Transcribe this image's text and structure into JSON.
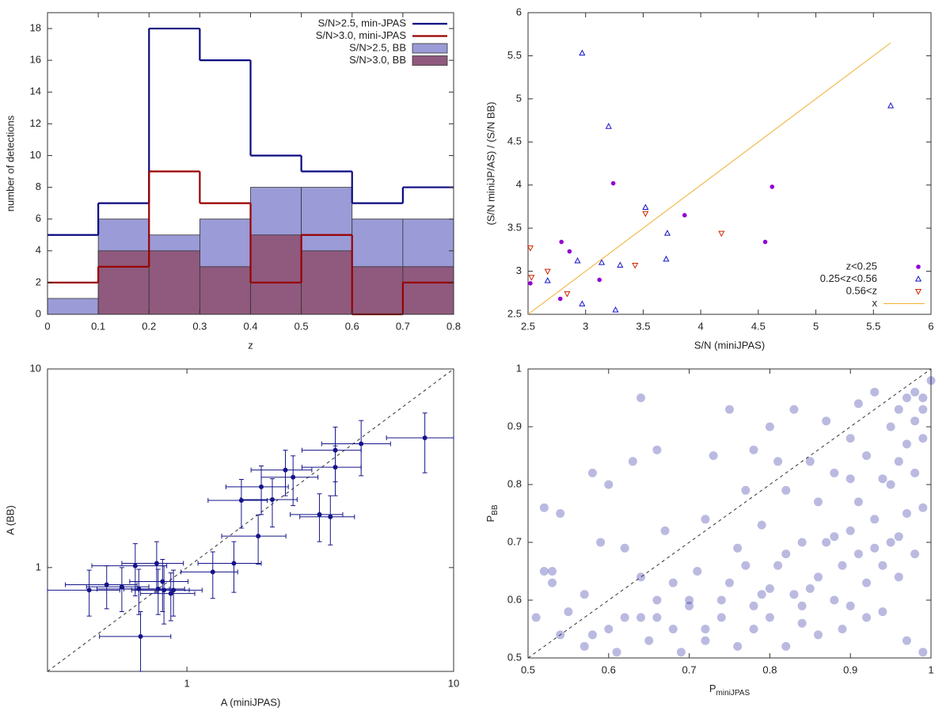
{
  "chart_data": [
    {
      "type": "histogram",
      "xlabel": "z",
      "ylabel": "number of detections",
      "bins": [
        0,
        0.1,
        0.2,
        0.3,
        0.4,
        0.5,
        0.6,
        0.7,
        0.8
      ],
      "series": [
        {
          "name": "S/N>2.5, min-JPAS",
          "color": "#0a0a80",
          "style": "step",
          "values": [
            5,
            7,
            18,
            16,
            10,
            9,
            7,
            8
          ]
        },
        {
          "name": "S/N>3.0, mini-JPAS",
          "color": "#990000",
          "style": "step",
          "values": [
            2,
            3,
            9,
            7,
            2,
            5,
            0,
            2
          ]
        },
        {
          "name": "S/N>2.5, BB",
          "color": "#9b9bd7",
          "style": "filled",
          "values": [
            1,
            6,
            5,
            6,
            8,
            8,
            6,
            6
          ]
        },
        {
          "name": "S/N>3.0, BB",
          "color": "#8f5a7d",
          "style": "filled",
          "values": [
            0,
            4,
            4,
            3,
            5,
            4,
            3,
            3
          ]
        }
      ],
      "xlim": [
        0,
        0.8
      ],
      "ylim": [
        0,
        19
      ],
      "xticks": [
        0,
        0.1,
        0.2,
        0.3,
        0.4,
        0.5,
        0.6,
        0.7,
        0.8
      ],
      "yticks": [
        0,
        2,
        4,
        6,
        8,
        10,
        12,
        14,
        16,
        18
      ],
      "legend": "top-right"
    },
    {
      "type": "scatter",
      "xlabel": "S/N (miniJPAS)",
      "ylabel": "(S/N miniJP/AS) / (S/N BB)",
      "series": [
        {
          "name": "z<0.25",
          "color": "#9400d3",
          "marker": "circle",
          "x": [
            2.52,
            2.79,
            2.86,
            2.78,
            3.12,
            3.24,
            3.86,
            4.56,
            4.62
          ],
          "values": [
            2.86,
            3.34,
            3.23,
            2.68,
            2.9,
            4.02,
            3.65,
            3.34,
            3.98
          ]
        },
        {
          "name": "0.25<z<0.56",
          "color": "#1010c8",
          "marker": "triangle-up",
          "x": [
            2.97,
            3.2,
            2.67,
            2.93,
            3.14,
            2.97,
            3.3,
            3.26,
            3.71,
            3.52,
            3.7,
            5.65
          ],
          "values": [
            5.53,
            4.68,
            2.89,
            3.12,
            3.1,
            2.62,
            3.07,
            2.55,
            3.44,
            3.74,
            3.14,
            4.92
          ]
        },
        {
          "name": "0.56<z",
          "color": "#cc2200",
          "marker": "triangle-down",
          "x": [
            2.52,
            2.53,
            2.67,
            2.84,
            3.43,
            3.52,
            4.18
          ],
          "values": [
            3.27,
            2.93,
            3.0,
            2.74,
            3.07,
            3.67,
            3.44
          ]
        },
        {
          "name": "x",
          "color": "#f0b030",
          "marker": "line",
          "x": [
            2.5,
            5.65
          ],
          "values": [
            2.5,
            5.65
          ]
        }
      ],
      "xlim": [
        2.5,
        6
      ],
      "ylim": [
        2.5,
        6
      ],
      "xticks": [
        2.5,
        3,
        3.5,
        4,
        4.5,
        5,
        5.5,
        6
      ],
      "yticks": [
        2.5,
        3,
        3.5,
        4,
        4.5,
        5,
        5.5,
        6
      ],
      "legend": "bottom-right"
    },
    {
      "type": "errorbar",
      "xlabel": "A (miniJPAS)",
      "ylabel": "A (BB)",
      "log_x": true,
      "log_y": true,
      "color": "#15158a",
      "diagonal": true,
      "x": [
        7.8,
        4.5,
        3.6,
        3.6,
        2.34,
        2.5,
        1.9,
        2.09,
        1.6,
        3.14,
        3.45,
        1.85,
        1.5,
        1.25,
        0.77,
        0.64,
        0.81,
        0.82,
        0.89,
        0.87,
        0.78,
        0.57,
        0.5,
        0.43,
        0.67,
        0.66
      ],
      "values": [
        4.5,
        4.2,
        3.9,
        3.2,
        3.1,
        2.85,
        2.55,
        2.2,
        2.18,
        1.85,
        1.8,
        1.44,
        1.05,
        0.95,
        1.05,
        1.02,
        0.85,
        0.77,
        0.77,
        0.74,
        0.78,
        0.8,
        0.82,
        0.77,
        0.45,
        0.78
      ],
      "xerr": [
        2.2,
        1.3,
        0.9,
        0.9,
        0.6,
        0.6,
        0.5,
        0.5,
        0.4,
        0.7,
        0.8,
        0.5,
        0.4,
        0.3,
        0.2,
        0.2,
        0.2,
        0.2,
        0.25,
        0.2,
        0.2,
        0.15,
        0.15,
        0.13,
        0.2,
        0.2
      ],
      "yerr": [
        1.5,
        1.3,
        1.2,
        0.9,
        0.8,
        0.8,
        0.7,
        0.6,
        0.6,
        0.5,
        0.5,
        0.4,
        0.3,
        0.25,
        0.3,
        0.3,
        0.25,
        0.25,
        0.2,
        0.2,
        0.2,
        0.2,
        0.2,
        0.2,
        0.15,
        0.2
      ],
      "xlim": [
        0.3,
        10
      ],
      "ylim": [
        0.3,
        10
      ],
      "xticks": [
        1,
        10
      ],
      "yticks": [
        1,
        10
      ]
    },
    {
      "type": "scatter",
      "xlabel": {
        "text": "P",
        "sub": "miniJPAS"
      },
      "ylabel": {
        "text": "P",
        "sub": "BB"
      },
      "diagonal": true,
      "alpha": 0.3,
      "series": [
        {
          "color": "#1a1a9c",
          "marker": "disc",
          "x": [
            0.51,
            0.52,
            0.52,
            0.53,
            0.53,
            0.54,
            0.54,
            0.55,
            0.57,
            0.57,
            0.58,
            0.58,
            0.59,
            0.6,
            0.61,
            0.62,
            0.63,
            0.64,
            0.64,
            0.65,
            0.66,
            0.66,
            0.67,
            0.68,
            0.69,
            0.7,
            0.71,
            0.72,
            0.72,
            0.73,
            0.74,
            0.75,
            0.75,
            0.76,
            0.77,
            0.77,
            0.78,
            0.78,
            0.79,
            0.79,
            0.8,
            0.8,
            0.81,
            0.81,
            0.82,
            0.82,
            0.83,
            0.83,
            0.84,
            0.84,
            0.85,
            0.85,
            0.86,
            0.86,
            0.87,
            0.87,
            0.88,
            0.88,
            0.89,
            0.89,
            0.9,
            0.9,
            0.9,
            0.91,
            0.91,
            0.92,
            0.92,
            0.93,
            0.93,
            0.94,
            0.94,
            0.95,
            0.95,
            0.96,
            0.96,
            0.96,
            0.97,
            0.97,
            0.97,
            0.98,
            0.98,
            0.98,
            0.99,
            0.99,
            0.99,
            0.99,
            1.0,
            0.99,
            0.98,
            0.97,
            0.96,
            0.95,
            0.94,
            0.93,
            0.92,
            0.91,
            0.9,
            0.88,
            0.86,
            0.84,
            0.82,
            0.8,
            0.78,
            0.76,
            0.74,
            0.72,
            0.7,
            0.68,
            0.66,
            0.64,
            0.62,
            0.6
          ],
          "values": [
            0.57,
            0.76,
            0.65,
            0.65,
            0.63,
            0.54,
            0.75,
            0.58,
            0.52,
            0.61,
            0.82,
            0.54,
            0.7,
            0.8,
            0.51,
            0.57,
            0.84,
            0.95,
            0.64,
            0.53,
            0.86,
            0.57,
            0.72,
            0.55,
            0.51,
            0.6,
            0.65,
            0.74,
            0.53,
            0.85,
            0.57,
            0.93,
            0.63,
            0.52,
            0.79,
            0.66,
            0.55,
            0.86,
            0.73,
            0.61,
            0.9,
            0.57,
            0.66,
            0.84,
            0.52,
            0.79,
            0.93,
            0.61,
            0.56,
            0.7,
            0.84,
            0.62,
            0.77,
            0.54,
            0.7,
            0.91,
            0.6,
            0.82,
            0.66,
            0.55,
            0.88,
            0.72,
            0.59,
            0.94,
            0.77,
            0.63,
            0.85,
            0.96,
            0.69,
            0.81,
            0.58,
            0.9,
            0.7,
            0.93,
            0.64,
            0.84,
            0.95,
            0.75,
            0.53,
            0.91,
            0.82,
            0.68,
            0.95,
            0.88,
            0.76,
            0.51,
            0.98,
            0.93,
            0.96,
            0.87,
            0.71,
            0.8,
            0.66,
            0.74,
            0.57,
            0.68,
            0.81,
            0.71,
            0.64,
            0.59,
            0.68,
            0.62,
            0.59,
            0.69,
            0.6,
            0.55,
            0.59,
            0.63,
            0.6,
            0.57,
            0.69,
            0.55
          ]
        }
      ],
      "xlim": [
        0.5,
        1
      ],
      "ylim": [
        0.5,
        1
      ],
      "xticks": [
        0.5,
        0.6,
        0.7,
        0.8,
        0.9,
        1
      ],
      "yticks": [
        0.5,
        0.6,
        0.7,
        0.8,
        0.9,
        1
      ]
    }
  ]
}
